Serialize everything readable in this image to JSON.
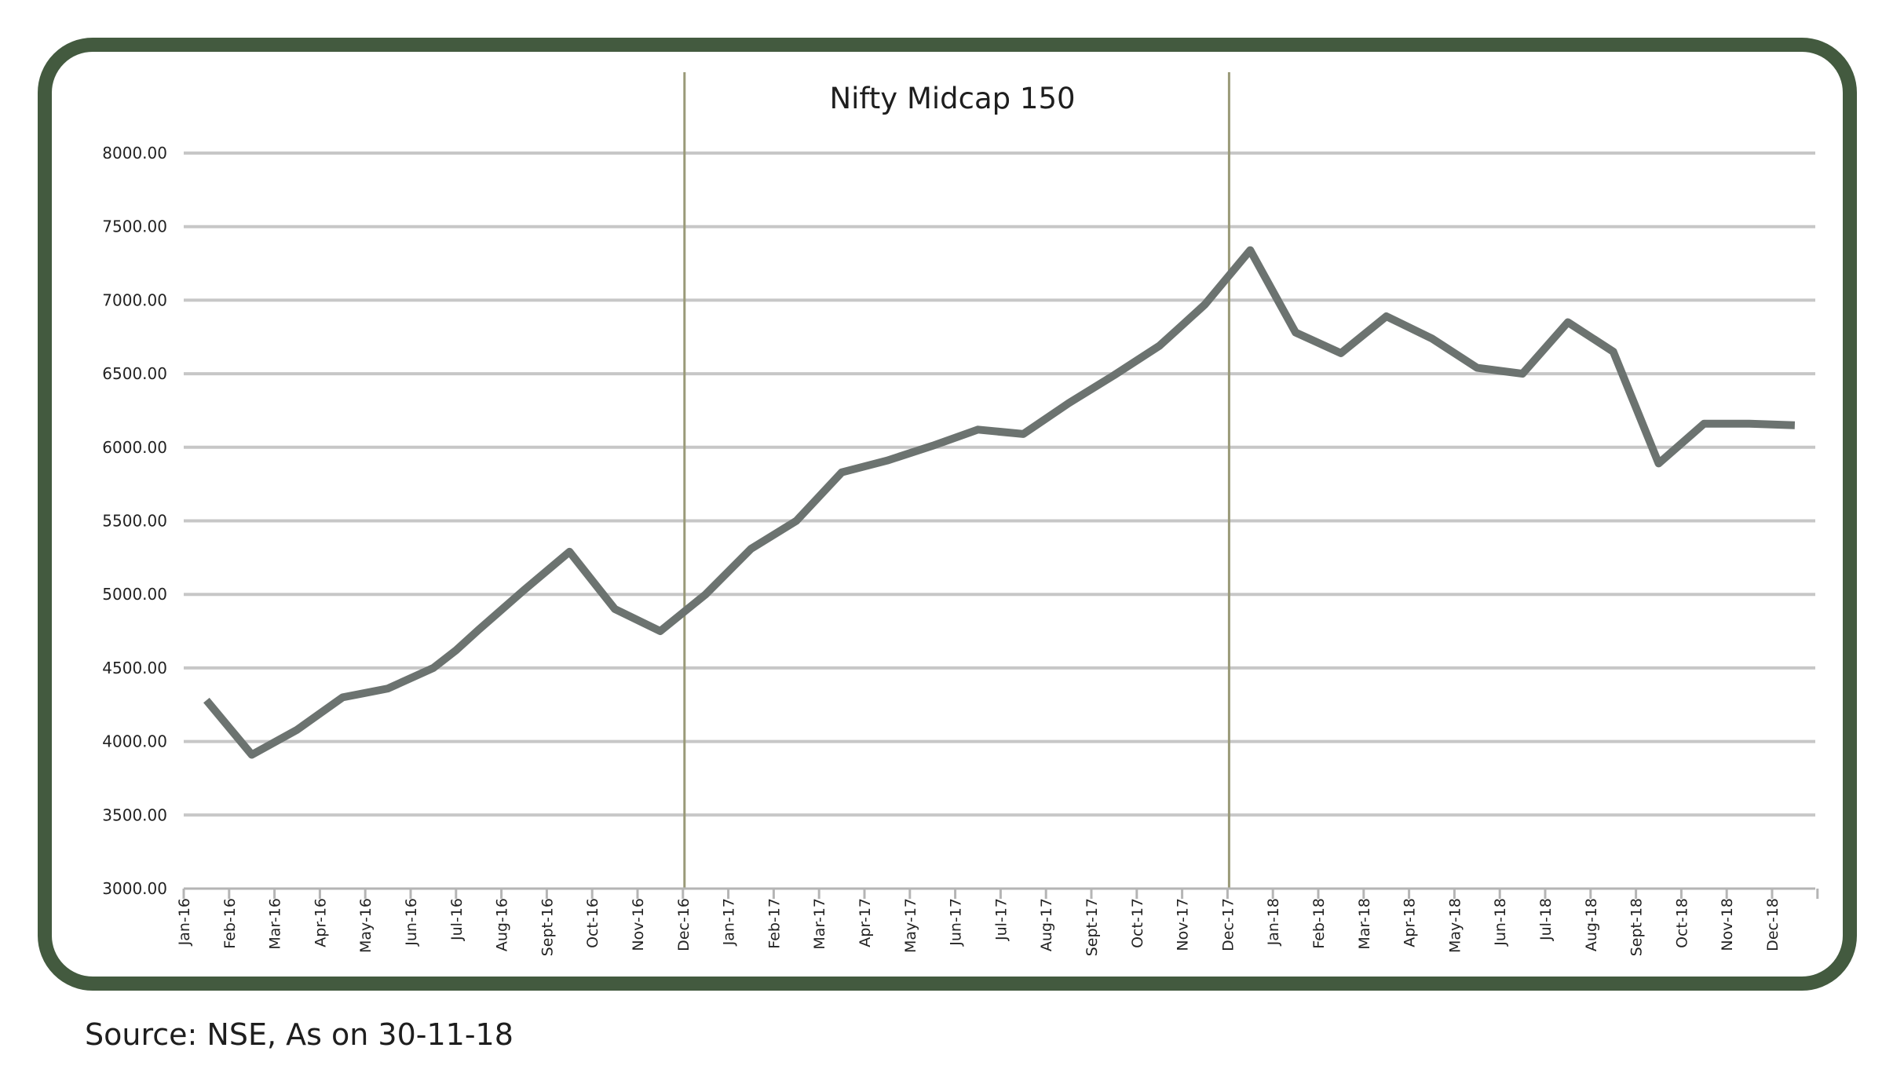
{
  "source_note": "Source: NSE, As on 30-11-18",
  "colors": {
    "frame": "#435a3f",
    "grid": "#c7c7c7",
    "series_line": "#6c7370",
    "divider": "#9a9a78",
    "axis": "#b5b5b5"
  },
  "chart_data": {
    "type": "line",
    "title": "Nifty Midcap 150",
    "xlabel": "",
    "ylabel": "",
    "ylim": [
      3000,
      8000
    ],
    "grid": "horizontal",
    "legend": "none",
    "y_ticks": [
      "3000.00",
      "3500.00",
      "4000.00",
      "4500.00",
      "5000.00",
      "5500.00",
      "6000.00",
      "6500.00",
      "7000.00",
      "7500.00",
      "8000.00"
    ],
    "y_tick_values": [
      3000,
      3500,
      4000,
      4500,
      5000,
      5500,
      6000,
      6500,
      7000,
      7500,
      8000
    ],
    "categories": [
      "Jan-16",
      "Feb-16",
      "Mar-16",
      "Apr-16",
      "May-16",
      "Jun-16",
      "Jul-16",
      "Aug-16",
      "Sept-16",
      "Oct-16",
      "Nov-16",
      "Dec-16",
      "Jan-17",
      "Feb-17",
      "Mar-17",
      "Apr-17",
      "May-17",
      "Jun-17",
      "Jul-17",
      "Aug-17",
      "Sept-17",
      "Oct-17",
      "Nov-17",
      "Dec-17",
      "Jan-18",
      "Feb-18",
      "Mar-18",
      "Apr-18",
      "May-18",
      "Jun-18",
      "Jul-18",
      "Aug-18",
      "Sept-18",
      "Oct-18",
      "Nov-18",
      "Dec-18"
    ],
    "vertical_markers": [
      "Dec-16",
      "Dec-17"
    ],
    "series": [
      {
        "x": [
          0.5,
          1.5,
          2.5,
          3.5,
          4.5,
          5.5,
          6.0,
          6.5,
          7.5,
          8.5,
          9.5,
          10.5,
          11.5,
          12.5,
          13.5,
          14.5,
          15.5,
          16.5,
          17.5,
          18.5,
          19.5,
          20.5,
          21.5,
          22.0,
          22.5,
          23.5,
          24.5,
          25.5,
          26.5,
          27.5,
          28.5,
          29.5,
          30.5,
          31.5,
          32.5,
          33.5,
          34.5,
          35.5
        ],
        "values": [
          4280,
          3910,
          4080,
          4300,
          4360,
          4500,
          4620,
          4760,
          5030,
          5290,
          4900,
          4750,
          5000,
          5310,
          5500,
          5830,
          5910,
          6010,
          6120,
          6090,
          6300,
          6490,
          6690,
          6830,
          6970,
          7340,
          6780,
          6640,
          6890,
          6740,
          6540,
          6500,
          6850,
          6650,
          5890,
          6160,
          6160,
          6150
        ]
      }
    ]
  }
}
